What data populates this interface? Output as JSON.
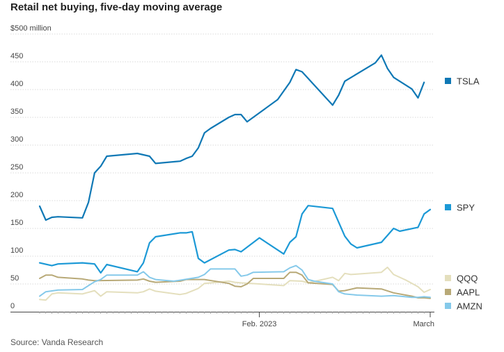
{
  "chart_data": {
    "type": "line",
    "title": "Retail net buying, five-day moving average",
    "source": "Source: Vanda Research",
    "y_unit_label": "$500 million",
    "ylim": [
      0,
      500
    ],
    "y_ticks": [
      {
        "value": 500,
        "label": "$500 million"
      },
      {
        "value": 450,
        "label": "450"
      },
      {
        "value": 400,
        "label": "400"
      },
      {
        "value": 350,
        "label": "350"
      },
      {
        "value": 300,
        "label": "300"
      },
      {
        "value": 250,
        "label": "250"
      },
      {
        "value": 200,
        "label": "200"
      },
      {
        "value": 150,
        "label": "150"
      },
      {
        "value": 100,
        "label": "100"
      },
      {
        "value": 50,
        "label": "50"
      },
      {
        "value": 0,
        "label": "0"
      }
    ],
    "x_range": [
      "2022-12-27",
      "2023-03-01"
    ],
    "x_ticks": [
      {
        "date": "2023-02-01",
        "label": "Feb. 2023"
      },
      {
        "date": "2023-03-01",
        "label": "March"
      }
    ],
    "grid": true,
    "legend_position": "right",
    "series": [
      {
        "name": "TSLA",
        "color": "#0f78b5",
        "width": 2.2,
        "points": [
          [
            "2022-12-27",
            190
          ],
          [
            "2022-12-28",
            165
          ],
          [
            "2022-12-29",
            170
          ],
          [
            "2022-12-30",
            171
          ],
          [
            "2023-01-03",
            169
          ],
          [
            "2023-01-04",
            197
          ],
          [
            "2023-01-05",
            250
          ],
          [
            "2023-01-06",
            262
          ],
          [
            "2023-01-07",
            280
          ],
          [
            "2023-01-12",
            285
          ],
          [
            "2023-01-14",
            280
          ],
          [
            "2023-01-15",
            267
          ],
          [
            "2023-01-19",
            271
          ],
          [
            "2023-01-20",
            276
          ],
          [
            "2023-01-21",
            280
          ],
          [
            "2023-01-22",
            295
          ],
          [
            "2023-01-23",
            322
          ],
          [
            "2023-01-24",
            330
          ],
          [
            "2023-01-27",
            350
          ],
          [
            "2023-01-28",
            355
          ],
          [
            "2023-01-29",
            355
          ],
          [
            "2023-01-30",
            342
          ],
          [
            "2023-02-04",
            382
          ],
          [
            "2023-02-06",
            413
          ],
          [
            "2023-02-07",
            436
          ],
          [
            "2023-02-08",
            432
          ],
          [
            "2023-02-13",
            372
          ],
          [
            "2023-02-14",
            390
          ],
          [
            "2023-02-15",
            415
          ],
          [
            "2023-02-20",
            448
          ],
          [
            "2023-02-21",
            462
          ],
          [
            "2023-02-22",
            438
          ],
          [
            "2023-02-23",
            422
          ],
          [
            "2023-02-26",
            401
          ],
          [
            "2023-02-27",
            385
          ],
          [
            "2023-02-28",
            413
          ]
        ]
      },
      {
        "name": "SPY",
        "color": "#1c99d6",
        "width": 2.2,
        "points": [
          [
            "2022-12-27",
            88
          ],
          [
            "2022-12-29",
            83
          ],
          [
            "2022-12-30",
            86
          ],
          [
            "2023-01-03",
            88
          ],
          [
            "2023-01-05",
            86
          ],
          [
            "2023-01-06",
            70
          ],
          [
            "2023-01-07",
            85
          ],
          [
            "2023-01-12",
            72
          ],
          [
            "2023-01-13",
            88
          ],
          [
            "2023-01-14",
            124
          ],
          [
            "2023-01-15",
            135
          ],
          [
            "2023-01-19",
            142
          ],
          [
            "2023-01-20",
            142
          ],
          [
            "2023-01-21",
            144
          ],
          [
            "2023-01-22",
            96
          ],
          [
            "2023-01-23",
            88
          ],
          [
            "2023-01-27",
            111
          ],
          [
            "2023-01-28",
            112
          ],
          [
            "2023-01-29",
            108
          ],
          [
            "2023-02-01",
            133
          ],
          [
            "2023-02-05",
            104
          ],
          [
            "2023-02-06",
            125
          ],
          [
            "2023-02-07",
            135
          ],
          [
            "2023-02-08",
            176
          ],
          [
            "2023-02-09",
            191
          ],
          [
            "2023-02-13",
            186
          ],
          [
            "2023-02-15",
            136
          ],
          [
            "2023-02-16",
            122
          ],
          [
            "2023-02-17",
            115
          ],
          [
            "2023-02-21",
            125
          ],
          [
            "2023-02-23",
            150
          ],
          [
            "2023-02-24",
            145
          ],
          [
            "2023-02-27",
            152
          ],
          [
            "2023-02-28",
            176
          ],
          [
            "2023-03-01",
            184
          ]
        ]
      },
      {
        "name": "QQQ",
        "color": "#e4dfbd",
        "width": 2,
        "points": [
          [
            "2022-12-27",
            22
          ],
          [
            "2022-12-28",
            21
          ],
          [
            "2022-12-29",
            32
          ],
          [
            "2022-12-30",
            34
          ],
          [
            "2023-01-03",
            32
          ],
          [
            "2023-01-05",
            38
          ],
          [
            "2023-01-06",
            28
          ],
          [
            "2023-01-07",
            36
          ],
          [
            "2023-01-12",
            34
          ],
          [
            "2023-01-13",
            36
          ],
          [
            "2023-01-14",
            41
          ],
          [
            "2023-01-15",
            37
          ],
          [
            "2023-01-19",
            31
          ],
          [
            "2023-01-20",
            33
          ],
          [
            "2023-01-22",
            42
          ],
          [
            "2023-01-23",
            51
          ],
          [
            "2023-01-27",
            55
          ],
          [
            "2023-01-28",
            53
          ],
          [
            "2023-01-29",
            52
          ],
          [
            "2023-02-01",
            50
          ],
          [
            "2023-02-05",
            47
          ],
          [
            "2023-02-06",
            56
          ],
          [
            "2023-02-08",
            55
          ],
          [
            "2023-02-09",
            52
          ],
          [
            "2023-02-13",
            62
          ],
          [
            "2023-02-14",
            56
          ],
          [
            "2023-02-15",
            69
          ],
          [
            "2023-02-16",
            67
          ],
          [
            "2023-02-21",
            71
          ],
          [
            "2023-02-22",
            80
          ],
          [
            "2023-02-23",
            67
          ],
          [
            "2023-02-25",
            57
          ],
          [
            "2023-02-27",
            45
          ],
          [
            "2023-02-28",
            35
          ],
          [
            "2023-03-01",
            40
          ]
        ]
      },
      {
        "name": "AAPL",
        "color": "#b8a977",
        "width": 2,
        "points": [
          [
            "2022-12-27",
            60
          ],
          [
            "2022-12-28",
            66
          ],
          [
            "2022-12-29",
            66
          ],
          [
            "2022-12-30",
            62
          ],
          [
            "2023-01-03",
            59
          ],
          [
            "2023-01-04",
            57
          ],
          [
            "2023-01-05",
            56
          ],
          [
            "2023-01-12",
            57
          ],
          [
            "2023-01-13",
            59
          ],
          [
            "2023-01-14",
            55
          ],
          [
            "2023-01-15",
            53
          ],
          [
            "2023-01-19",
            55
          ],
          [
            "2023-01-20",
            58
          ],
          [
            "2023-01-23",
            58
          ],
          [
            "2023-01-27",
            51
          ],
          [
            "2023-01-28",
            46
          ],
          [
            "2023-01-29",
            45
          ],
          [
            "2023-01-30",
            50
          ],
          [
            "2023-01-31",
            60
          ],
          [
            "2023-02-05",
            60
          ],
          [
            "2023-02-06",
            71
          ],
          [
            "2023-02-07",
            71
          ],
          [
            "2023-02-08",
            66
          ],
          [
            "2023-02-09",
            52
          ],
          [
            "2023-02-13",
            49
          ],
          [
            "2023-02-14",
            37
          ],
          [
            "2023-02-15",
            38
          ],
          [
            "2023-02-17",
            43
          ],
          [
            "2023-02-21",
            41
          ],
          [
            "2023-02-23",
            34
          ],
          [
            "2023-02-26",
            28
          ],
          [
            "2023-02-27",
            25
          ],
          [
            "2023-02-28",
            25
          ],
          [
            "2023-03-01",
            24
          ]
        ]
      },
      {
        "name": "AMZN",
        "color": "#85c9ea",
        "width": 2,
        "points": [
          [
            "2022-12-27",
            28
          ],
          [
            "2022-12-28",
            36
          ],
          [
            "2022-12-30",
            39
          ],
          [
            "2023-01-03",
            40
          ],
          [
            "2023-01-05",
            54
          ],
          [
            "2023-01-06",
            58
          ],
          [
            "2023-01-07",
            66
          ],
          [
            "2023-01-12",
            66
          ],
          [
            "2023-01-13",
            72
          ],
          [
            "2023-01-14",
            62
          ],
          [
            "2023-01-15",
            58
          ],
          [
            "2023-01-18",
            55
          ],
          [
            "2023-01-22",
            62
          ],
          [
            "2023-01-23",
            67
          ],
          [
            "2023-01-24",
            77
          ],
          [
            "2023-01-28",
            77
          ],
          [
            "2023-01-29",
            64
          ],
          [
            "2023-01-30",
            66
          ],
          [
            "2023-01-31",
            71
          ],
          [
            "2023-02-05",
            72
          ],
          [
            "2023-02-06",
            79
          ],
          [
            "2023-02-07",
            83
          ],
          [
            "2023-02-08",
            75
          ],
          [
            "2023-02-09",
            58
          ],
          [
            "2023-02-10",
            55
          ],
          [
            "2023-02-13",
            50
          ],
          [
            "2023-02-14",
            36
          ],
          [
            "2023-02-15",
            32
          ],
          [
            "2023-02-17",
            30
          ],
          [
            "2023-02-21",
            28
          ],
          [
            "2023-02-23",
            29
          ],
          [
            "2023-02-26",
            26
          ],
          [
            "2023-02-27",
            26
          ],
          [
            "2023-02-28",
            27
          ],
          [
            "2023-03-01",
            26
          ]
        ]
      }
    ]
  }
}
